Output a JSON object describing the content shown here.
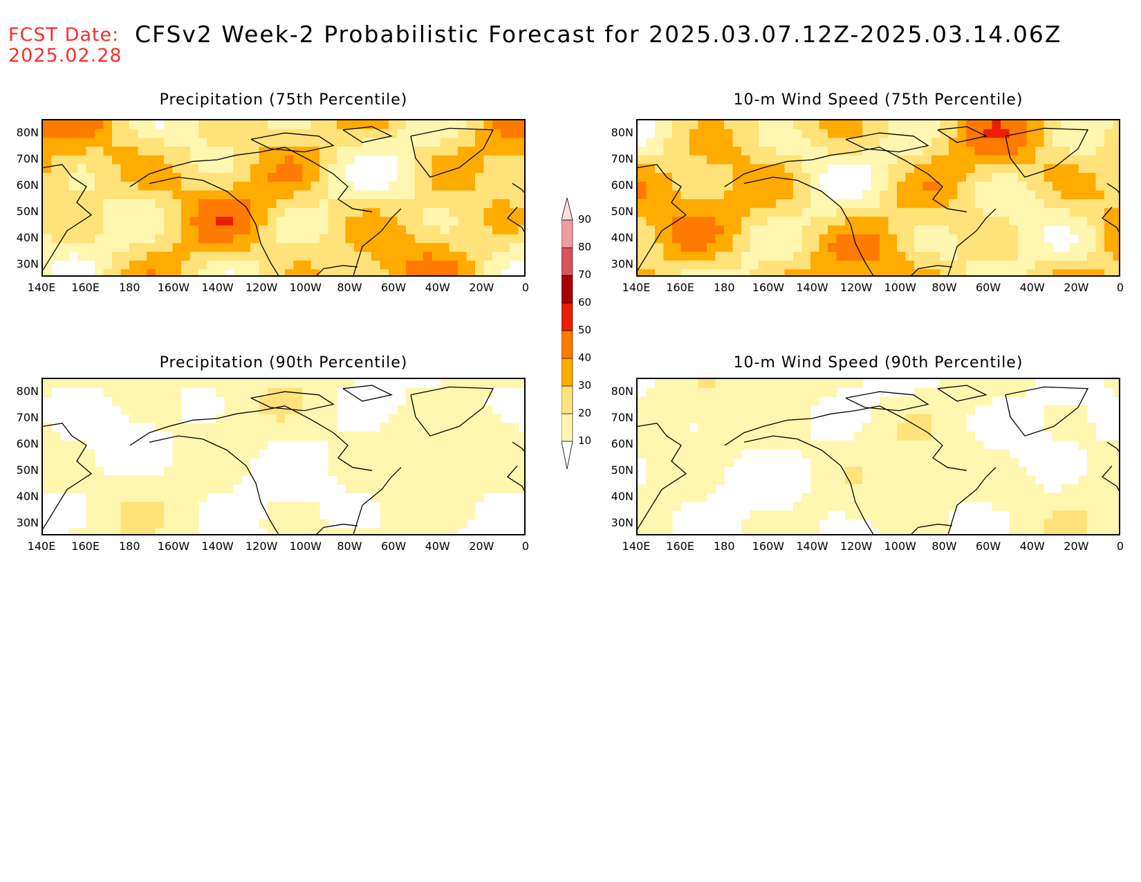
{
  "header": {
    "fcst_label": "FCST Date:",
    "fcst_date": "2025.02.28",
    "title": "CFSv2 Week-2 Probabilistic Forecast for 2025.03.07.12Z-2025.03.14.06Z"
  },
  "axes": {
    "lat_ticks": [
      "80N",
      "70N",
      "60N",
      "50N",
      "40N",
      "30N"
    ],
    "lon_ticks": [
      "140E",
      "160E",
      "180",
      "160W",
      "140W",
      "120W",
      "100W",
      "80W",
      "60W",
      "40W",
      "20W",
      "0"
    ]
  },
  "panels": [
    {
      "title": "Precipitation (75th Percentile)",
      "intensity": "high"
    },
    {
      "title": "10-m Wind Speed (75th Percentile)",
      "intensity": "high"
    },
    {
      "title": "Precipitation (90th Percentile)",
      "intensity": "low"
    },
    {
      "title": "10-m Wind Speed (90th Percentile)",
      "intensity": "low"
    }
  ],
  "colorbar": {
    "levels": [
      "10",
      "20",
      "30",
      "40",
      "50",
      "60",
      "70",
      "80",
      "90"
    ],
    "colors": [
      "#fff7b0",
      "#ffe27a",
      "#ffab00",
      "#ff7a00",
      "#e82000",
      "#a80000",
      "#d9535a",
      "#f09aa2",
      "#fde0e0"
    ]
  },
  "colors": {
    "fcst": "#ff2b2b",
    "coast": "#000000"
  }
}
